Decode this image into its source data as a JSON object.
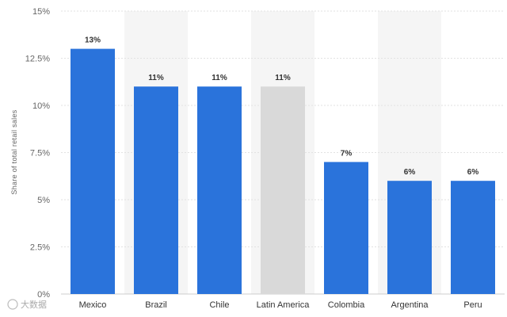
{
  "chart_data": {
    "type": "bar",
    "categories": [
      "Mexico",
      "Brazil",
      "Chile",
      "Latin America",
      "Colombia",
      "Argentina",
      "Peru"
    ],
    "values": [
      13,
      11,
      11,
      11,
      7,
      6,
      6
    ],
    "data_labels": [
      "13%",
      "11%",
      "11%",
      "11%",
      "7%",
      "6%",
      "6%"
    ],
    "highlight_category": "Latin America",
    "title": "",
    "xlabel": "",
    "ylabel": "Share of total retail sales",
    "ylim": [
      0,
      15
    ],
    "yticks": [
      0,
      2.5,
      5,
      7.5,
      10,
      12.5,
      15
    ],
    "ytick_labels": [
      "0%",
      "2.5%",
      "5%",
      "7.5%",
      "10%",
      "12.5%",
      "15%"
    ],
    "grid": true,
    "alternating_column_shading": true,
    "legend": "none",
    "colors": {
      "bar": "#2a73db",
      "highlight_bar": "#d9d9d9",
      "column_shade": "#f5f5f5",
      "grid": "#e2e2e2"
    }
  },
  "watermark": "大数据"
}
